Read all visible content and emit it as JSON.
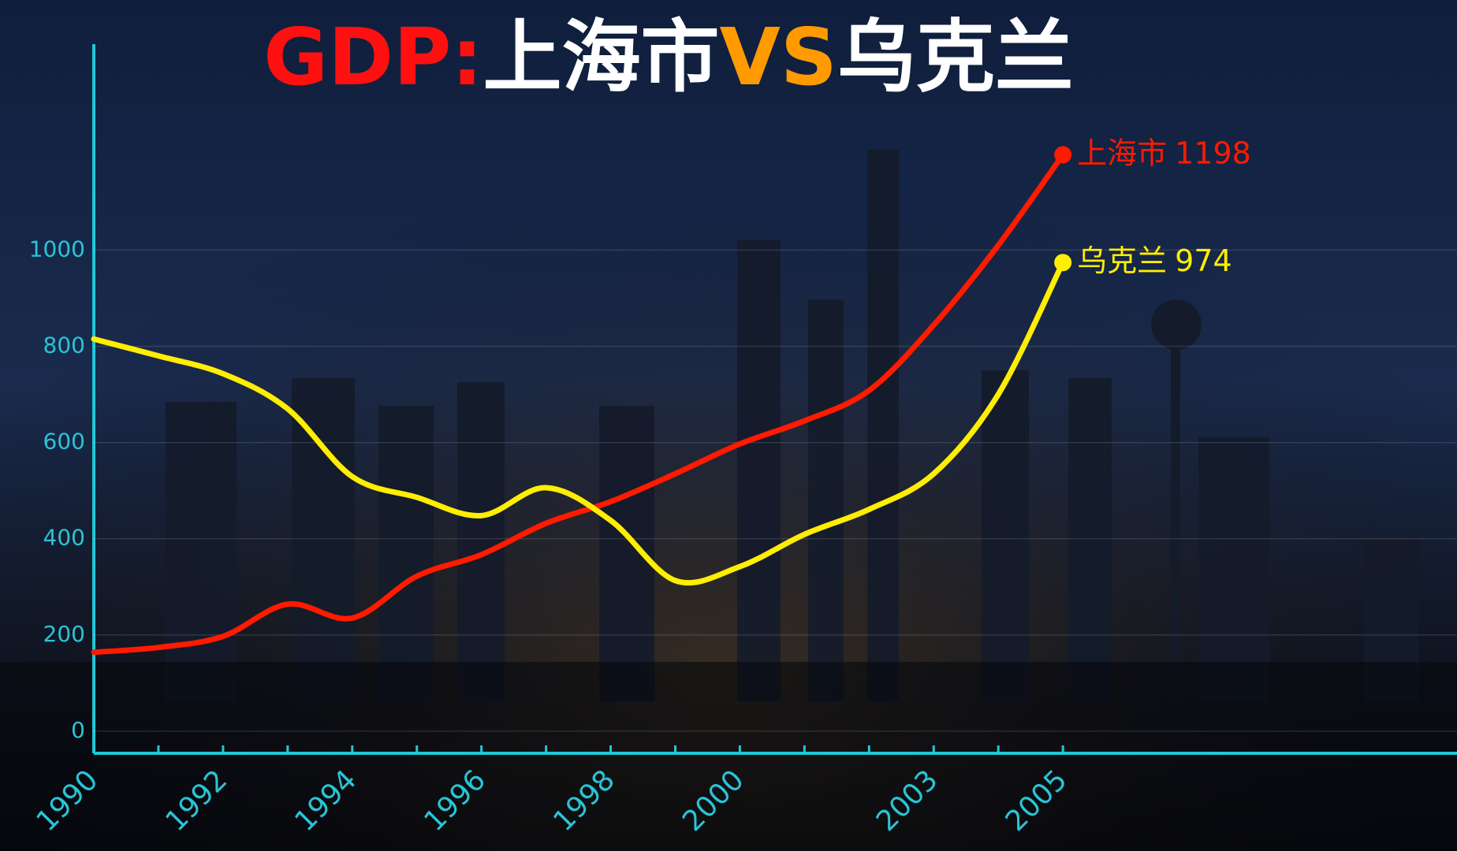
{
  "chart_data": {
    "type": "line",
    "title": [
      {
        "text": "GDP:",
        "color": "#ff1010"
      },
      {
        "text": "上海市",
        "color": "#ffffff"
      },
      {
        "text": "VS",
        "color": "#ff9a00"
      },
      {
        "text": "乌克兰",
        "color": "#ffffff"
      }
    ],
    "x": [
      1990,
      1991,
      1992,
      1993,
      1994,
      1995,
      1996,
      1997,
      1998,
      1999,
      2000,
      2001,
      2002,
      2003,
      2004,
      2005
    ],
    "series": [
      {
        "name": "上海市",
        "color": "#ff1a00",
        "values": [
          164,
          174,
          197,
          264,
          235,
          322,
          367,
          432,
          477,
          535,
          597,
          645,
          708,
          844,
          1010,
          1198
        ]
      },
      {
        "name": "乌克兰",
        "color": "#ffee00",
        "values": [
          815,
          780,
          743,
          670,
          529,
          486,
          448,
          506,
          438,
          313,
          342,
          409,
          461,
          535,
          700,
          974
        ]
      }
    ],
    "xlim": [
      1990,
      2011.1
    ],
    "xticks": [
      1990,
      1992,
      1994,
      1996,
      1998,
      2000,
      2003,
      2005
    ],
    "ylim": [
      -46,
      1428
    ],
    "yticks": [
      0,
      200,
      400,
      600,
      800,
      1000
    ],
    "grid": true
  }
}
